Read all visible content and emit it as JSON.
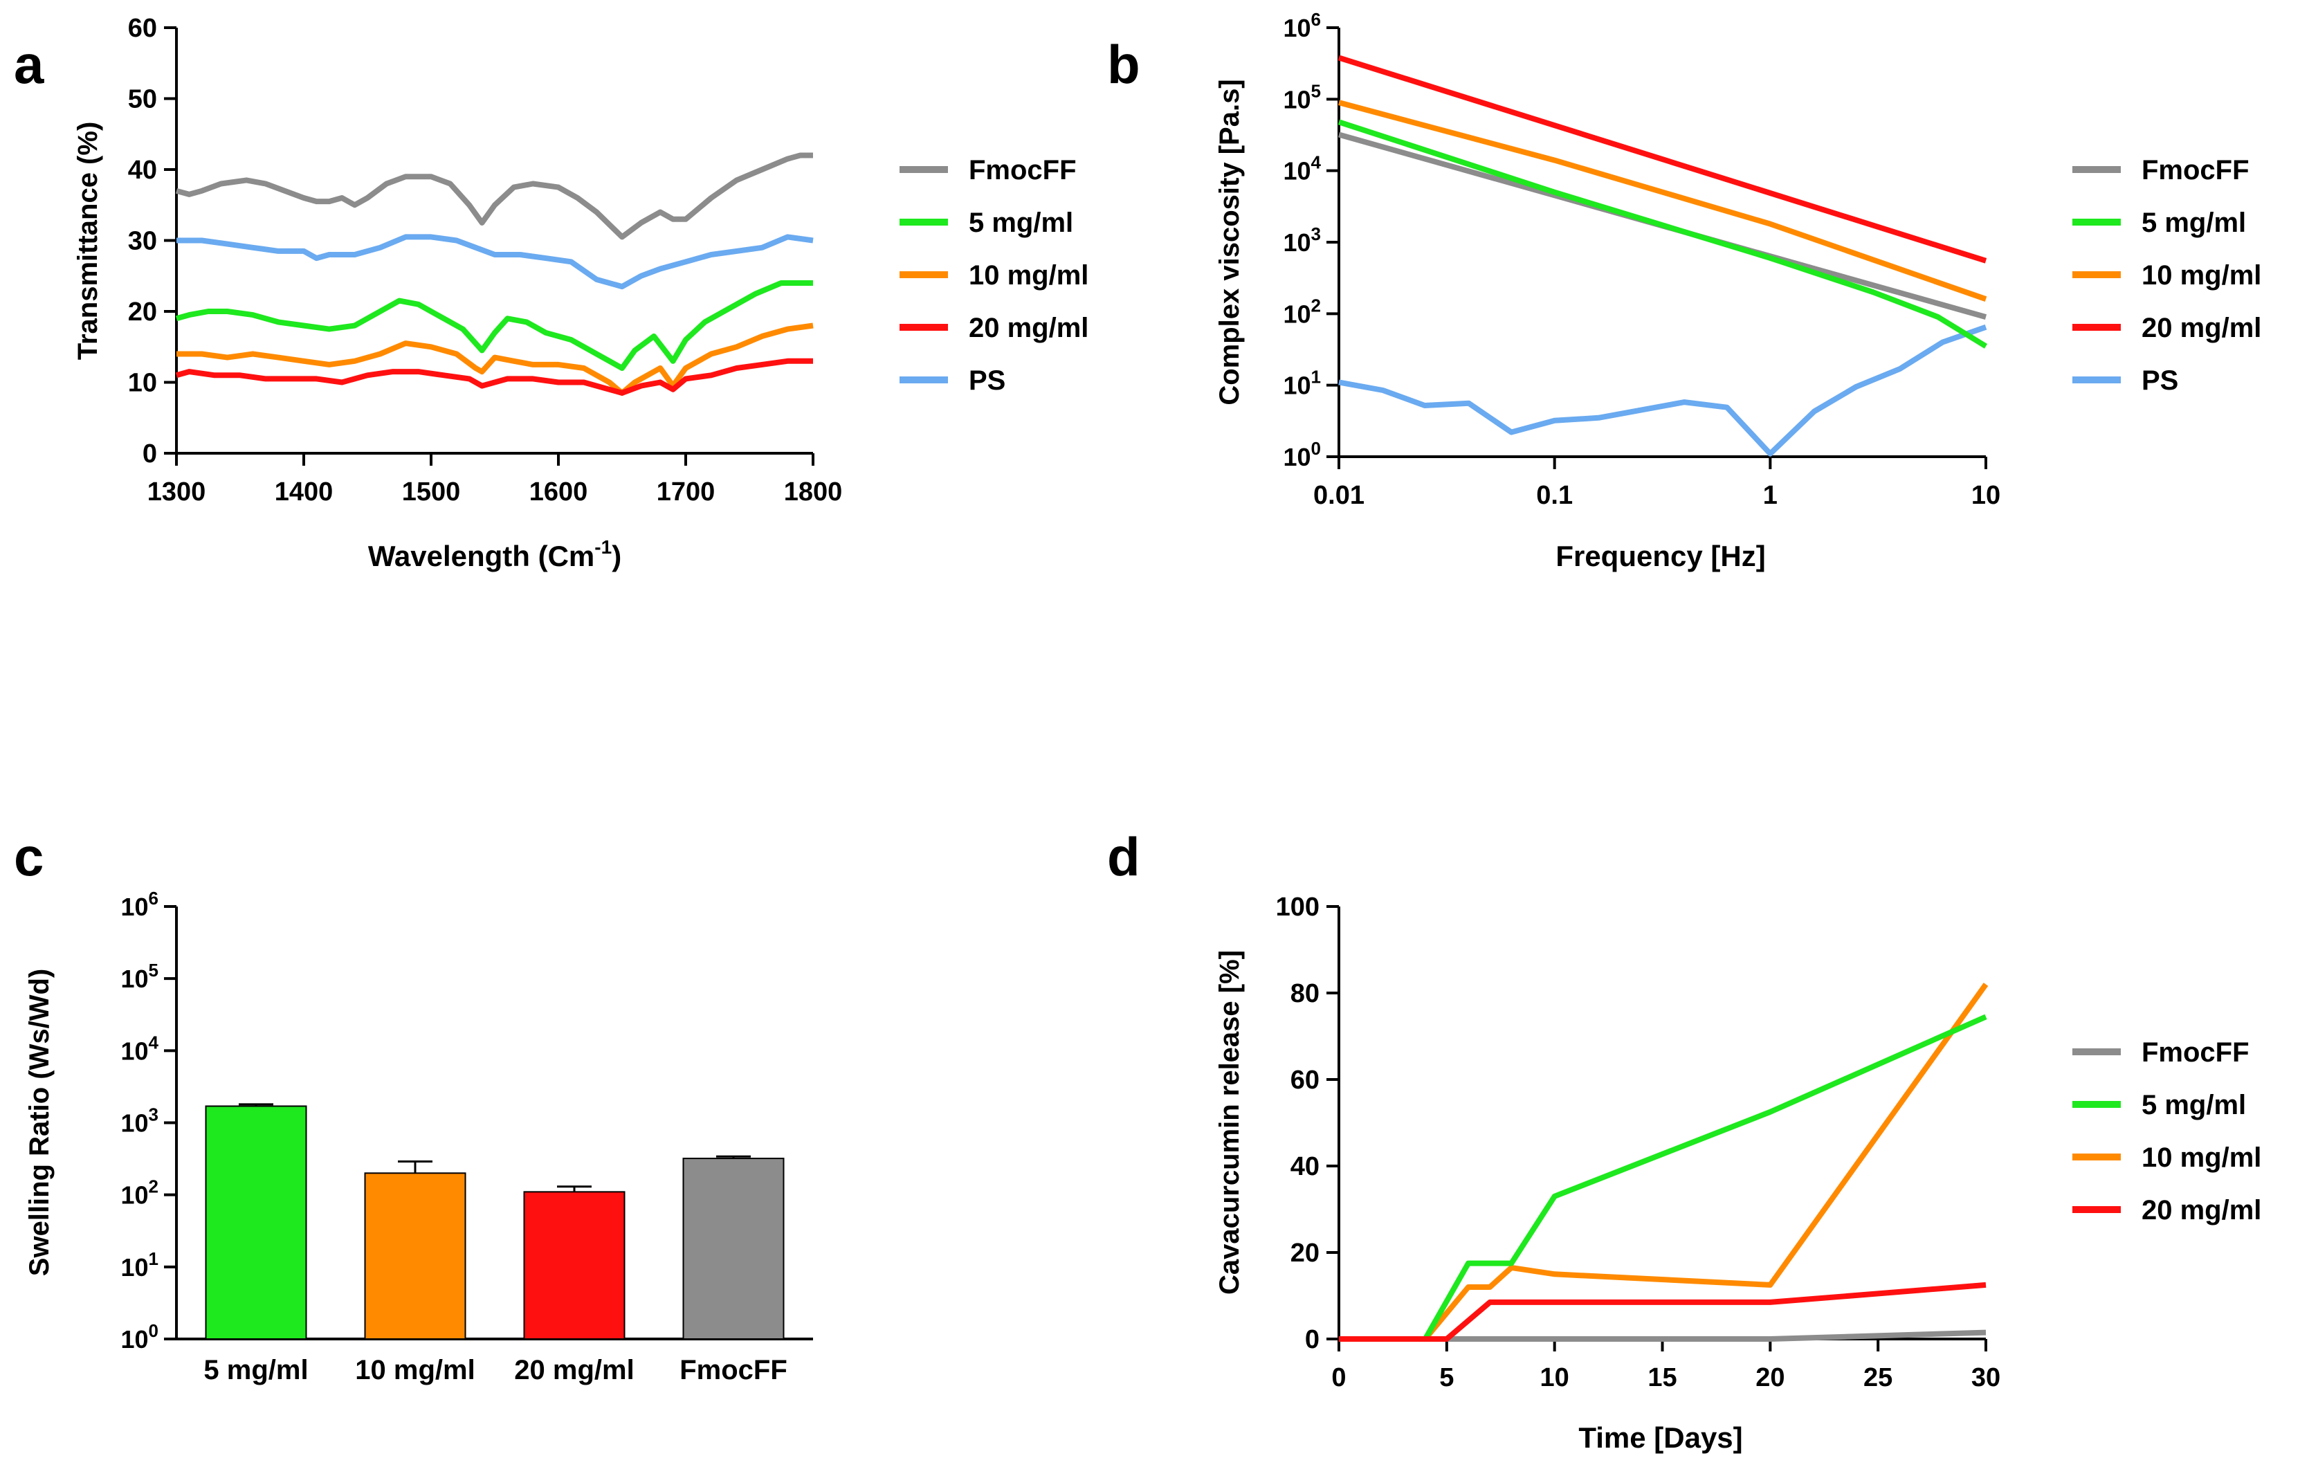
{
  "colors": {
    "FmocFF": "#8c8c8c",
    "5 mg/ml": "#1ee81e",
    "10 mg/ml": "#ff8a00",
    "20 mg/ml": "#ff1010",
    "PS": "#6aaaf0"
  },
  "chart_data": [
    {
      "panel": "a",
      "type": "line",
      "xlabel": "Wavelength (Cm",
      "xlabel_sup": "-1",
      "xlabel_end": ")",
      "ylabel": "Transmittance (%)",
      "xlim": [
        1300,
        1800
      ],
      "ylim": [
        0,
        60
      ],
      "xticks": [
        1300,
        1400,
        1500,
        1600,
        1700,
        1800
      ],
      "yticks": [
        0,
        10,
        20,
        30,
        40,
        50,
        60
      ],
      "legend": [
        "FmocFF",
        "5 mg/ml",
        "10 mg/ml",
        "20 mg/ml",
        "PS"
      ],
      "series": [
        {
          "name": "FmocFF",
          "x": [
            1300,
            1310,
            1320,
            1335,
            1355,
            1370,
            1385,
            1400,
            1410,
            1420,
            1430,
            1440,
            1450,
            1465,
            1480,
            1500,
            1515,
            1530,
            1540,
            1550,
            1565,
            1580,
            1600,
            1615,
            1630,
            1650,
            1665,
            1680,
            1690,
            1700,
            1720,
            1740,
            1760,
            1780,
            1790,
            1800
          ],
          "y": [
            37,
            36.5,
            37,
            38,
            38.5,
            38,
            37,
            36,
            35.5,
            35.5,
            36,
            35,
            36,
            38,
            39,
            39,
            38,
            35,
            32.5,
            35,
            37.5,
            38,
            37.5,
            36,
            34,
            30.5,
            32.5,
            34,
            33,
            33,
            36,
            38.5,
            40,
            41.5,
            42,
            42
          ]
        },
        {
          "name": "PS",
          "x": [
            1300,
            1320,
            1340,
            1360,
            1380,
            1400,
            1410,
            1420,
            1440,
            1460,
            1480,
            1500,
            1520,
            1535,
            1550,
            1570,
            1590,
            1610,
            1630,
            1650,
            1665,
            1680,
            1700,
            1720,
            1740,
            1760,
            1780,
            1800
          ],
          "y": [
            30,
            30,
            29.5,
            29,
            28.5,
            28.5,
            27.5,
            28,
            28,
            29,
            30.5,
            30.5,
            30,
            29,
            28,
            28,
            27.5,
            27,
            24.5,
            23.5,
            25,
            26,
            27,
            28,
            28.5,
            29,
            30.5,
            30
          ]
        },
        {
          "name": "5 mg/ml",
          "x": [
            1300,
            1310,
            1325,
            1340,
            1360,
            1380,
            1400,
            1420,
            1440,
            1460,
            1475,
            1490,
            1510,
            1525,
            1540,
            1550,
            1560,
            1575,
            1590,
            1610,
            1630,
            1645,
            1650,
            1660,
            1675,
            1690,
            1700,
            1715,
            1735,
            1755,
            1775,
            1790,
            1800
          ],
          "y": [
            19,
            19.5,
            20,
            20,
            19.5,
            18.5,
            18,
            17.5,
            18,
            20,
            21.5,
            21,
            19,
            17.5,
            14.5,
            17,
            19,
            18.5,
            17,
            16,
            14,
            12.5,
            12,
            14.5,
            16.5,
            13,
            16,
            18.5,
            20.5,
            22.5,
            24,
            24,
            24
          ]
        },
        {
          "name": "10 mg/ml",
          "x": [
            1300,
            1320,
            1340,
            1360,
            1380,
            1400,
            1420,
            1440,
            1460,
            1480,
            1500,
            1520,
            1535,
            1540,
            1550,
            1565,
            1580,
            1600,
            1620,
            1640,
            1650,
            1660,
            1680,
            1690,
            1700,
            1720,
            1740,
            1760,
            1780,
            1800
          ],
          "y": [
            14,
            14,
            13.5,
            14,
            13.5,
            13,
            12.5,
            13,
            14,
            15.5,
            15,
            14,
            12,
            11.5,
            13.5,
            13,
            12.5,
            12.5,
            12,
            10,
            8.5,
            10,
            12,
            9.5,
            12,
            14,
            15,
            16.5,
            17.5,
            18
          ]
        },
        {
          "name": "20 mg/ml",
          "x": [
            1300,
            1310,
            1330,
            1350,
            1370,
            1390,
            1410,
            1430,
            1450,
            1470,
            1490,
            1510,
            1530,
            1540,
            1560,
            1580,
            1600,
            1620,
            1640,
            1650,
            1665,
            1680,
            1690,
            1700,
            1720,
            1740,
            1760,
            1780,
            1800
          ],
          "y": [
            11,
            11.5,
            11,
            11,
            10.5,
            10.5,
            10.5,
            10,
            11,
            11.5,
            11.5,
            11,
            10.5,
            9.5,
            10.5,
            10.5,
            10,
            10,
            9,
            8.5,
            9.5,
            10,
            9,
            10.5,
            11,
            12,
            12.5,
            13,
            13
          ]
        }
      ]
    },
    {
      "panel": "b",
      "type": "line",
      "xscale": "log",
      "yscale": "log",
      "xlabel": "Frequency [Hz]",
      "ylabel": "Complex viscosity [Pa.s]",
      "xlim": [
        0.01,
        10
      ],
      "ylim": [
        1,
        1000000
      ],
      "xticks": [
        0.01,
        0.1,
        1,
        10
      ],
      "xtick_labels": [
        "0.01",
        "0.1",
        "1",
        "10"
      ],
      "yticks_exp": [
        0,
        1,
        2,
        3,
        4,
        5,
        6
      ],
      "legend": [
        "FmocFF",
        "5 mg/ml",
        "10 mg/ml",
        "20 mg/ml",
        "PS"
      ],
      "series": [
        {
          "name": "FmocFF",
          "x": [
            0.01,
            10
          ],
          "y": [
            32000,
            90
          ]
        },
        {
          "name": "5 mg/ml",
          "x": [
            0.01,
            0.1,
            1,
            3,
            6,
            10
          ],
          "y": [
            48000,
            5000,
            600,
            200,
            90,
            35
          ]
        },
        {
          "name": "10 mg/ml",
          "x": [
            0.01,
            0.1,
            1,
            10
          ],
          "y": [
            90000,
            14000,
            1800,
            160
          ]
        },
        {
          "name": "20 mg/ml",
          "x": [
            0.01,
            10
          ],
          "y": [
            380000,
            550
          ]
        },
        {
          "name": "PS",
          "x": [
            0.01,
            0.016,
            0.025,
            0.04,
            0.063,
            0.1,
            0.16,
            0.4,
            0.63,
            1.0,
            1.6,
            2.5,
            4,
            6.3,
            10
          ],
          "y": [
            11,
            8.5,
            5.2,
            5.6,
            2.2,
            3.2,
            3.5,
            5.8,
            4.9,
            1.1,
            4.3,
            9.5,
            17,
            40,
            65
          ]
        }
      ]
    },
    {
      "panel": "c",
      "type": "bar",
      "yscale": "log",
      "ylabel": "Swelling Ratio (Ws/Wd)",
      "ylim": [
        1,
        1000000
      ],
      "yticks_exp": [
        0,
        1,
        2,
        3,
        4,
        5,
        6
      ],
      "categories": [
        "5 mg/ml",
        "10 mg/ml",
        "20 mg/ml",
        "FmocFF"
      ],
      "values": [
        1700,
        200,
        110,
        320
      ],
      "errors": [
        1800,
        290,
        130,
        340
      ]
    },
    {
      "panel": "d",
      "type": "line",
      "xlabel": "Time [Days]",
      "ylabel": "Cavacurcumin release [%]",
      "xlim": [
        0,
        30
      ],
      "ylim": [
        0,
        100
      ],
      "xticks": [
        0,
        5,
        10,
        15,
        20,
        25,
        30
      ],
      "yticks": [
        0,
        20,
        40,
        60,
        80,
        100
      ],
      "legend": [
        "FmocFF",
        "5 mg/ml",
        "10 mg/ml",
        "20 mg/ml"
      ],
      "series": [
        {
          "name": "FmocFF",
          "x": [
            0,
            20,
            30
          ],
          "y": [
            0,
            0,
            1.5
          ]
        },
        {
          "name": "10 mg/ml",
          "x": [
            0,
            4,
            6,
            7,
            8,
            10,
            20,
            30
          ],
          "y": [
            0,
            0,
            12,
            12,
            16.5,
            15,
            12.5,
            82
          ]
        },
        {
          "name": "5 mg/ml",
          "x": [
            0,
            4,
            6,
            8,
            10,
            20,
            30
          ],
          "y": [
            0,
            0,
            17.5,
            17.5,
            33,
            52.5,
            74.5
          ]
        },
        {
          "name": "20 mg/ml",
          "x": [
            0,
            5,
            7,
            10,
            20,
            30
          ],
          "y": [
            0,
            0,
            8.5,
            8.5,
            8.5,
            12.5
          ]
        }
      ]
    }
  ]
}
